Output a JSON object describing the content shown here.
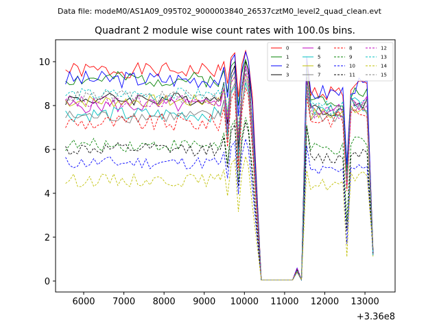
{
  "suptitle": "Data file: modeM0/AS1A09_095T02_9000003840_26537cztM0_level2_quad_clean.evt",
  "chart_data": {
    "type": "line",
    "title": "Quadrant 2 module wise count rates with 100.0s bins.",
    "xlabel": "",
    "ylabel": "",
    "x_offset_label": "+3.36e8",
    "xlim": [
      5300,
      13750
    ],
    "ylim": [
      -0.5,
      11
    ],
    "xticks": [
      6000,
      7000,
      8000,
      9000,
      10000,
      11000,
      12000,
      13000
    ],
    "xtick_labels": [
      "6000",
      "7000",
      "8000",
      "9000",
      "10000",
      "11000",
      "12000",
      "13000"
    ],
    "yticks": [
      0,
      2,
      4,
      6,
      8,
      10
    ],
    "ytick_labels": [
      "0",
      "2",
      "4",
      "6",
      "8",
      "10"
    ],
    "grid": false,
    "legend_position": "top-right",
    "segments": {
      "pre": [
        5550,
        9350
      ],
      "flare": [
        9400,
        10050
      ],
      "drop_to_zero": [
        10200,
        10420
      ],
      "zero_gap": [
        10420,
        11200
      ],
      "bump": [
        11250,
        11420
      ],
      "after": [
        11550,
        13200
      ]
    },
    "series": [
      {
        "name": "0",
        "color": "#ff0000",
        "dash": "solid",
        "base": 9.6,
        "noise": 0.35,
        "flare_peak": 10.0,
        "after_level": 8.6
      },
      {
        "name": "1",
        "color": "#008000",
        "dash": "solid",
        "base": 9.2,
        "noise": 0.35,
        "flare_peak": 9.6,
        "after_level": 8.3
      },
      {
        "name": "2",
        "color": "#0000ff",
        "dash": "solid",
        "base": 9.2,
        "noise": 0.4,
        "flare_peak": 10.0,
        "after_level": 8.6
      },
      {
        "name": "3",
        "color": "#000000",
        "dash": "solid",
        "base": 8.3,
        "noise": 0.3,
        "flare_peak": 9.6,
        "after_level": 7.8
      },
      {
        "name": "4",
        "color": "#bf00bf",
        "dash": "solid",
        "base": 8.0,
        "noise": 0.35,
        "flare_peak": 9.4,
        "after_level": 7.8
      },
      {
        "name": "5",
        "color": "#00bfbf",
        "dash": "solid",
        "base": 7.6,
        "noise": 0.35,
        "flare_peak": 8.6,
        "after_level": 7.8
      },
      {
        "name": "6",
        "color": "#bfbf00",
        "dash": "solid",
        "base": 8.2,
        "noise": 0.3,
        "flare_peak": 9.0,
        "after_level": 7.6
      },
      {
        "name": "7",
        "color": "#808080",
        "dash": "solid",
        "base": 7.5,
        "noise": 0.3,
        "flare_peak": 8.8,
        "after_level": 7.5
      },
      {
        "name": "8",
        "color": "#ff0000",
        "dash": "dashed",
        "base": 7.2,
        "noise": 0.4,
        "flare_peak": 8.4,
        "after_level": 7.4
      },
      {
        "name": "9",
        "color": "#008000",
        "dash": "dashed",
        "base": 6.2,
        "noise": 0.3,
        "flare_peak": 7.0,
        "after_level": 6.0
      },
      {
        "name": "10",
        "color": "#0000ff",
        "dash": "dashed",
        "base": 5.4,
        "noise": 0.3,
        "flare_peak": 6.0,
        "after_level": 5.0
      },
      {
        "name": "11",
        "color": "#000000",
        "dash": "dashed",
        "base": 6.0,
        "noise": 0.3,
        "flare_peak": 6.8,
        "after_level": 5.6
      },
      {
        "name": "12",
        "color": "#bf00bf",
        "dash": "dashed",
        "base": 8.2,
        "noise": 0.3,
        "flare_peak": 9.0,
        "after_level": 7.7
      },
      {
        "name": "13",
        "color": "#00bfbf",
        "dash": "dashed",
        "base": 8.5,
        "noise": 0.3,
        "flare_peak": 9.2,
        "after_level": 7.9
      },
      {
        "name": "14",
        "color": "#bfbf00",
        "dash": "dashed",
        "base": 4.6,
        "noise": 0.3,
        "flare_peak": 5.2,
        "after_level": 4.4
      },
      {
        "name": "15",
        "color": "#808080",
        "dash": "dashed",
        "base": 8.4,
        "noise": 0.3,
        "flare_peak": 9.2,
        "after_level": 7.8
      }
    ]
  }
}
